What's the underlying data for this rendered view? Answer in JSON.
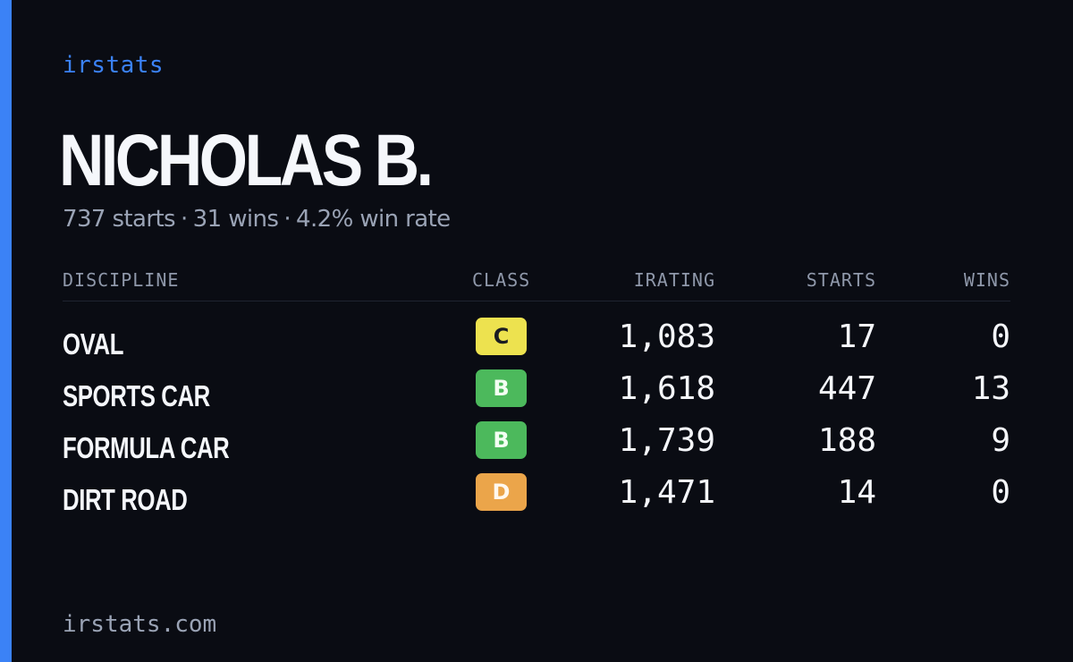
{
  "brand": "irstats",
  "player": {
    "name": "NICHOLAS B.",
    "starts_text": "737 starts",
    "wins_text": "31 wins",
    "win_rate_text": "4.2% win rate",
    "separator": "·"
  },
  "table": {
    "headers": {
      "discipline": "DISCIPLINE",
      "class": "CLASS",
      "irating": "IRATING",
      "starts": "STARTS",
      "wins": "WINS"
    },
    "rows": [
      {
        "discipline": "OVAL",
        "class": "C",
        "irating": "1,083",
        "starts": "17",
        "wins": "0"
      },
      {
        "discipline": "SPORTS CAR",
        "class": "B",
        "irating": "1,618",
        "starts": "447",
        "wins": "13"
      },
      {
        "discipline": "FORMULA CAR",
        "class": "B",
        "irating": "1,739",
        "starts": "188",
        "wins": "9"
      },
      {
        "discipline": "DIRT ROAD",
        "class": "D",
        "irating": "1,471",
        "starts": "14",
        "wins": "0"
      }
    ]
  },
  "footer": {
    "domain": "irstats.com"
  },
  "colors": {
    "background": "#0a0c13",
    "accent": "#3b82f6",
    "class_c": "#ede24f",
    "class_b": "#4cb95c",
    "class_d": "#eba54a",
    "muted_text": "#9aa3b5"
  }
}
